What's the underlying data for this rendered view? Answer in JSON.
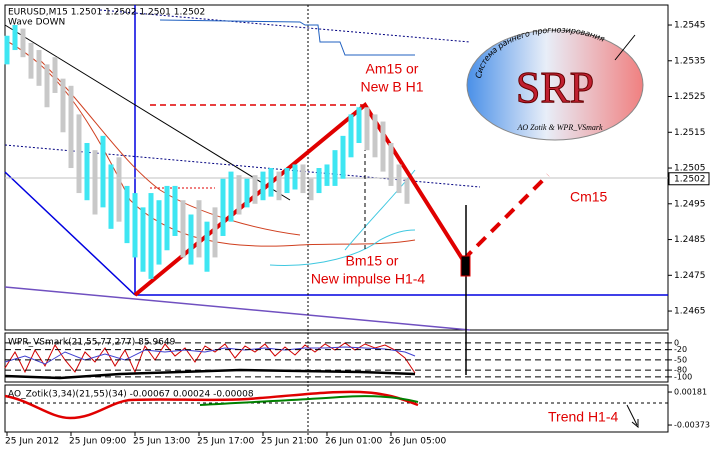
{
  "chart_data": {
    "type": "hilo",
    "title": "EURUSD,M15  1.2501 1.2502 1.2501 1.2502",
    "subtitle": "Wave DOWN",
    "x": [
      0,
      2,
      4,
      6,
      8,
      10,
      12,
      14,
      16,
      18,
      20,
      22,
      24,
      26,
      28,
      30,
      32,
      34,
      36,
      38,
      40,
      42,
      44,
      46,
      48,
      50,
      52,
      54,
      56,
      58,
      60,
      62,
      64,
      66,
      68,
      70,
      72,
      74,
      76,
      78,
      80,
      82,
      84,
      86,
      88,
      90,
      92,
      94,
      96,
      98,
      100
    ],
    "low": [
      1.2534,
      1.2538,
      1.2536,
      1.253,
      1.2528,
      1.2522,
      1.2526,
      1.2515,
      1.2505,
      1.2498,
      1.2496,
      1.2492,
      1.2494,
      1.2488,
      1.249,
      1.2484,
      1.248,
      1.2476,
      1.2474,
      1.2478,
      1.2482,
      1.2486,
      1.248,
      1.2478,
      1.248,
      1.2476,
      1.248,
      1.2486,
      1.249,
      1.2492,
      1.2494,
      1.2495,
      1.2496,
      1.2497,
      1.2496,
      1.2498,
      1.2499,
      1.2498,
      1.2496,
      1.2498,
      1.25,
      1.25,
      1.2502,
      1.2508,
      1.2512,
      1.251,
      1.2508,
      1.2504,
      1.25,
      1.2498,
      1.2495
    ],
    "high": [
      1.2542,
      1.2545,
      1.2544,
      1.254,
      1.2538,
      1.2534,
      1.2536,
      1.253,
      1.2528,
      1.252,
      1.2512,
      1.251,
      1.2514,
      1.2506,
      1.2508,
      1.25,
      1.2498,
      1.2494,
      1.2498,
      1.2496,
      1.25,
      1.25,
      1.2496,
      1.2492,
      1.2496,
      1.249,
      1.2494,
      1.2502,
      1.2504,
      1.2503,
      1.2502,
      1.2503,
      1.2504,
      1.2505,
      1.2504,
      1.2505,
      1.2506,
      1.2506,
      1.2502,
      1.2505,
      1.2506,
      1.251,
      1.2514,
      1.252,
      1.2522,
      1.2522,
      1.252,
      1.2518,
      1.2512,
      1.2506,
      1.2502
    ],
    "colors": [
      "#3ee6f2",
      "#3ee6f2",
      "#c8c8c8",
      "#c8c8c8",
      "#c8c8c8",
      "#c8c8c8",
      "#c8c8c8",
      "#c8c8c8",
      "#c8c8c8",
      "#c8c8c8",
      "#3ee6f2",
      "#c8c8c8",
      "#3ee6f2",
      "#3ee6f2",
      "#c8c8c8",
      "#3ee6f2",
      "#3ee6f2",
      "#3ee6f2",
      "#3ee6f2",
      "#3ee6f2",
      "#3ee6f2",
      "#3ee6f2",
      "#c8c8c8",
      "#3ee6f2",
      "#c8c8c8",
      "#3ee6f2",
      "#c8c8c8",
      "#3ee6f2",
      "#3ee6f2",
      "#c8c8c8",
      "#3ee6f2",
      "#c8c8c8",
      "#3ee6f2",
      "#3ee6f2",
      "#c8c8c8",
      "#3ee6f2",
      "#3ee6f2",
      "#c8c8c8",
      "#c8c8c8",
      "#3ee6f2",
      "#3ee6f2",
      "#3ee6f2",
      "#3ee6f2",
      "#3ee6f2",
      "#3ee6f2",
      "#c8c8c8",
      "#c8c8c8",
      "#c8c8c8",
      "#c8c8c8",
      "#c8c8c8",
      "#c8c8c8"
    ],
    "xlim": [
      -0.5,
      165.25
    ],
    "xticks": [
      {
        "value": 0,
        "label": "25 Jun 2012"
      },
      {
        "value": 16,
        "label": "25 Jun 09:00"
      },
      {
        "value": 32,
        "label": "25 Jun 13:00"
      },
      {
        "value": 48,
        "label": "25 Jun 17:00"
      },
      {
        "value": 64,
        "label": "25 Jun 21:00"
      },
      {
        "value": 80,
        "label": "26 Jun 01:00"
      },
      {
        "value": 96,
        "label": "26 Jun 05:00"
      }
    ],
    "ylim": [
      1.24597,
      1.25506
    ],
    "yticks": [
      1.2465,
      1.2475,
      1.2485,
      1.2495,
      1.2505,
      1.2515,
      1.2525,
      1.2535,
      1.2545
    ],
    "last_price": 1.2502,
    "annotations": [
      "Am15 or",
      "New B H1",
      "Bm15 or",
      "New impulse H1-4",
      "Cm15",
      "Trend H1-4"
    ],
    "logo": {
      "arc": "Система раннего прогнозирования",
      "name": "SRP",
      "credit": "AO Zotik & WPR_VSmark"
    },
    "indicators": [
      {
        "title": "WPR_VSmark(21,55,77,277)  85.9649",
        "ylim": [
          -115,
          29
        ],
        "yticks": [
          0,
          -20,
          -50,
          -80,
          -100
        ]
      },
      {
        "title": "AO_Zotik(3,34)(21,55)(34) -0.00067 0.00024 -0.00008",
        "ylim": [
          -0.0049,
          0.00299
        ],
        "yticks": [
          0.00181,
          -0.00373
        ]
      }
    ]
  }
}
